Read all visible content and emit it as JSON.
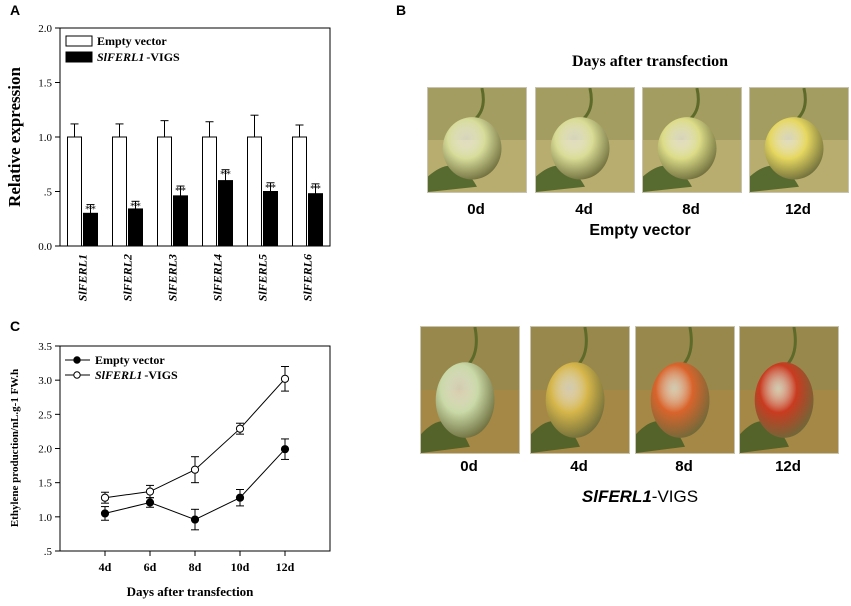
{
  "panels": {
    "a": "A",
    "b": "B",
    "c": "C"
  },
  "chart_data": [
    {
      "type": "bar",
      "panel": "A",
      "ylabel": "Relative expression",
      "ylim": [
        0,
        2.0
      ],
      "yticks": [
        "0.0",
        ".5",
        "1.0",
        "1.5",
        "2.0"
      ],
      "ytick_values": [
        0,
        0.5,
        1.0,
        1.5,
        2.0
      ],
      "categories": [
        "SlFERL1",
        "SlFERL2",
        "SlFERL3",
        "SlFERL4",
        "SlFERL5",
        "SlFERL6"
      ],
      "series": [
        {
          "name": "Empty vector",
          "values": [
            1.0,
            1.0,
            1.0,
            1.0,
            1.0,
            1.0
          ],
          "errors": [
            0.12,
            0.12,
            0.15,
            0.14,
            0.2,
            0.11
          ],
          "color": "#ffffff"
        },
        {
          "name": "-VIGS",
          "name_prefix": "SlFERL1",
          "values": [
            0.3,
            0.34,
            0.46,
            0.6,
            0.5,
            0.48
          ],
          "errors": [
            0.08,
            0.07,
            0.09,
            0.1,
            0.08,
            0.09
          ],
          "color": "#000000"
        }
      ],
      "annotation": "**"
    },
    {
      "type": "line",
      "panel": "C",
      "xlabel": "Days after transfection",
      "ylabel": "Ethylene production/nL.g-1 FW.h",
      "categories": [
        "4d",
        "6d",
        "8d",
        "10d",
        "12d"
      ],
      "ylim": [
        0.5,
        3.5
      ],
      "yticks": [
        ".5",
        "1.0",
        "1.5",
        "2.0",
        "2.5",
        "3.0",
        "3.5"
      ],
      "ytick_values": [
        0.5,
        1.0,
        1.5,
        2.0,
        2.5,
        3.0,
        3.5
      ],
      "series": [
        {
          "name": "Empty vector",
          "values": [
            1.05,
            1.21,
            0.96,
            1.28,
            1.99
          ],
          "errors": [
            0.1,
            0.07,
            0.15,
            0.12,
            0.15
          ],
          "marker": "filled"
        },
        {
          "name": "-VIGS",
          "name_prefix": "SlFERL1",
          "values": [
            1.28,
            1.37,
            1.69,
            2.29,
            3.02
          ],
          "errors": [
            0.08,
            0.09,
            0.19,
            0.08,
            0.18
          ],
          "marker": "open"
        }
      ]
    }
  ],
  "panel_b": {
    "title": "Days after transfection",
    "top_days": [
      "0d",
      "4d",
      "8d",
      "12d"
    ],
    "top_label": "Empty vector",
    "bottom_days": [
      "0d",
      "4d",
      "8d",
      "12d"
    ],
    "bottom_label_italic": "SlFERL1",
    "bottom_label_suffix": "-VIGS",
    "top_fruit_colors": [
      "#d7dc9a",
      "#d9dc95",
      "#dcdc88",
      "#e6d760"
    ],
    "bottom_fruit_colors": [
      "#c9d9a7",
      "#d6b64a",
      "#d9642c",
      "#c93b20"
    ]
  }
}
